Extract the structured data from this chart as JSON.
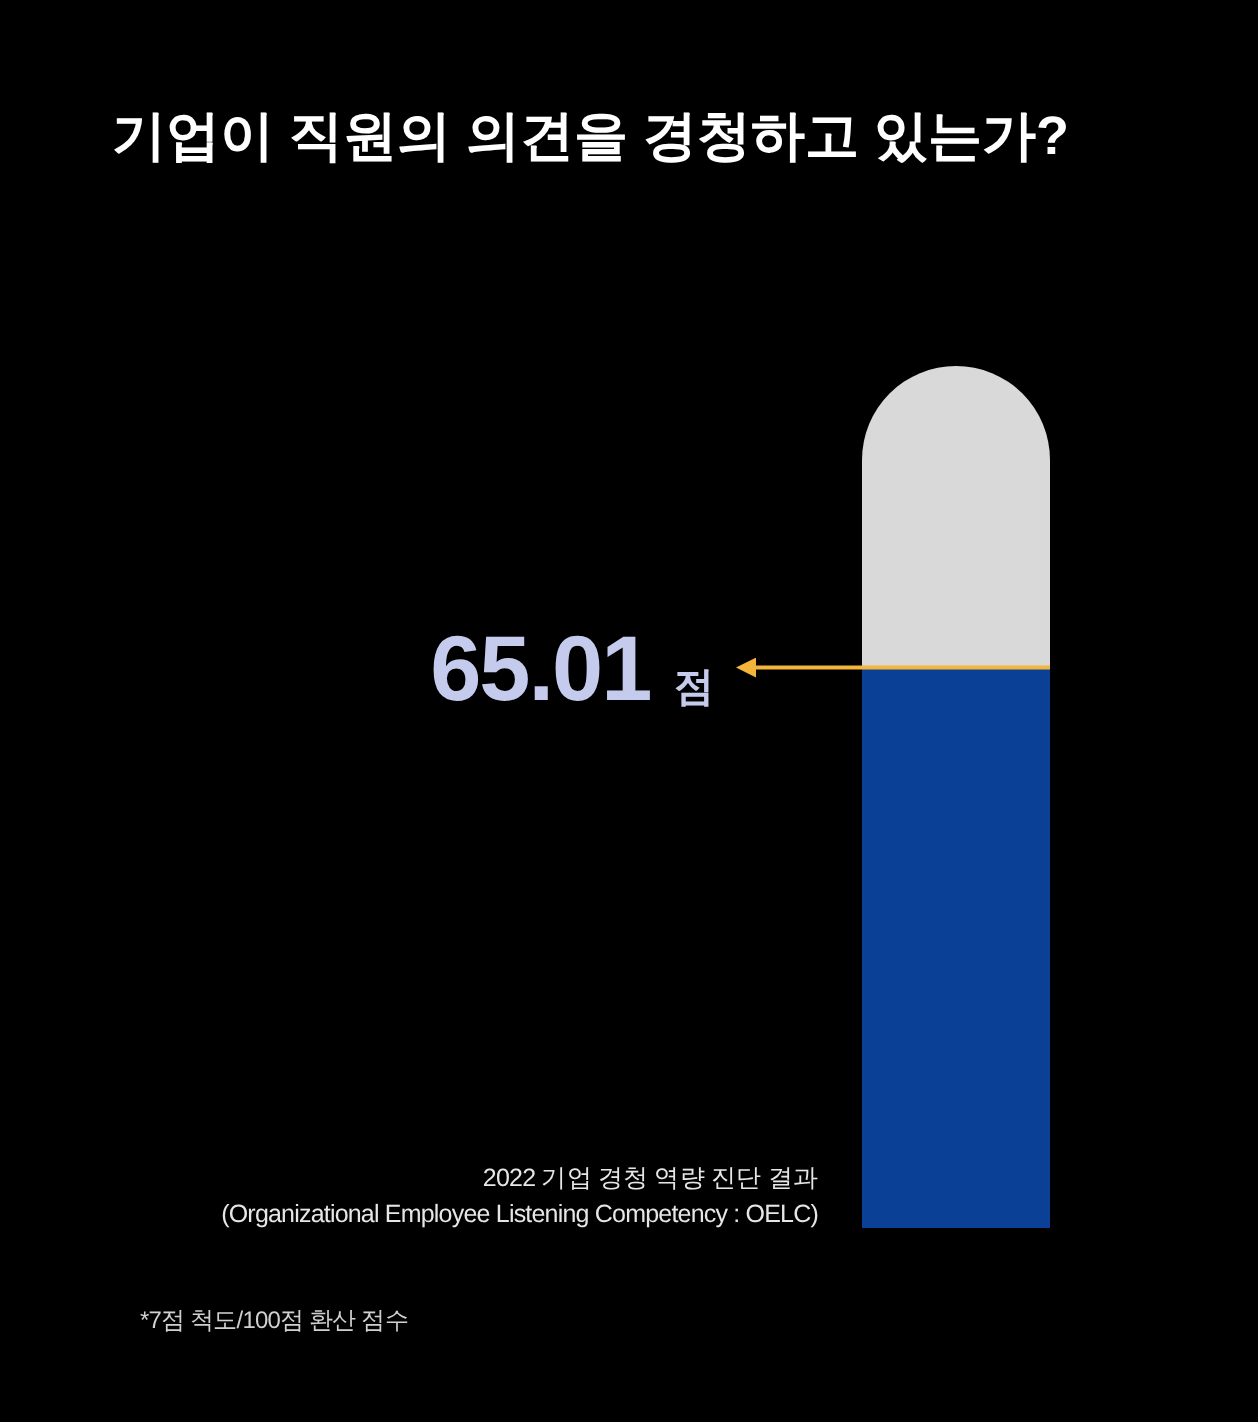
{
  "chart_data": {
    "type": "bar",
    "title": "기업이 직원의 의견을 경청하고 있는가?",
    "categories": [
      null
    ],
    "values": [
      65.01
    ],
    "color": "#0a4096",
    "ylim": [
      0,
      100
    ],
    "value_labels": [
      "65.01 점"
    ],
    "annotations": [
      "2022 기업 경청 역량 진단 결과\n(Organizational Employee Listening Competency : OELC)",
      "*7점 척도/100점 환산 점수"
    ]
  }
}
